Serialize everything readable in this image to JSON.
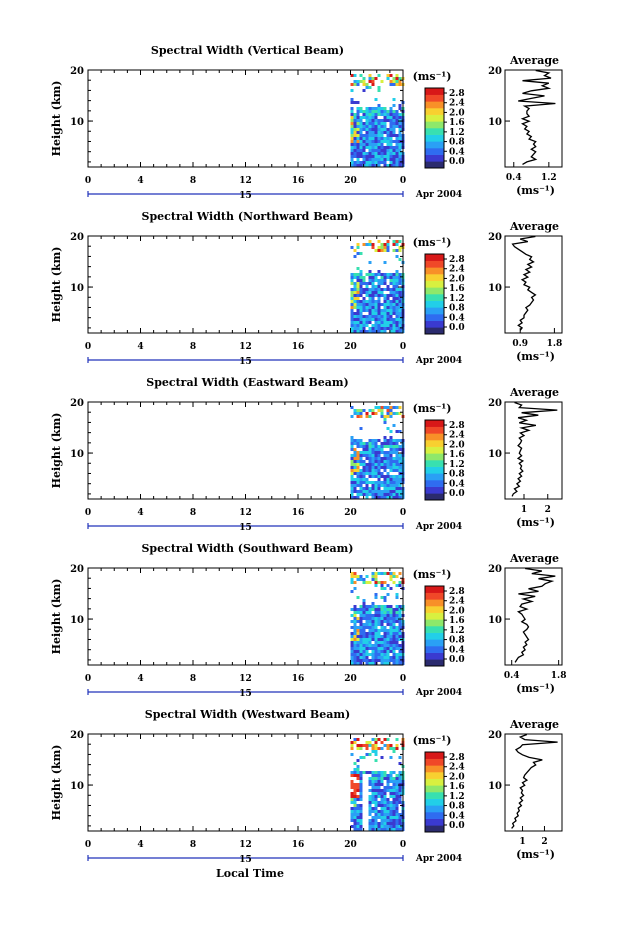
{
  "figure": {
    "date_label": "Apr 2004",
    "day_label": "15",
    "x_axis_label": "Local Time",
    "height_label": "Height (km)",
    "unit_label": "(ms⁻¹)",
    "avg_title": "Average",
    "avg_xlabel": "(ms⁻¹)"
  },
  "colorbar_ticks": [
    "2.8",
    "2.4",
    "2.0",
    "1.6",
    "1.2",
    "0.8",
    "0.4",
    "0.0"
  ],
  "colorbar_colors": [
    "#2b2b6e",
    "#3a3ad0",
    "#2f6cf0",
    "#2aa0f5",
    "#22cfe8",
    "#38e0b0",
    "#8ee86a",
    "#d8f040",
    "#f8d030",
    "#f89028",
    "#f04828",
    "#d81818"
  ],
  "chart_data": [
    {
      "type": "heatmap",
      "title": "Spectral Width (Vertical Beam)",
      "xlabel": "Local Time",
      "ylabel": "Height (km)",
      "x_ticks": [
        "0",
        "4",
        "8",
        "12",
        "16",
        "20",
        "0"
      ],
      "xlim": [
        0,
        24
      ],
      "y_ticks": [
        "20",
        "10"
      ],
      "ylim": [
        1,
        20
      ],
      "colorbar": {
        "label": "(ms⁻¹)",
        "range": [
          0,
          3.0
        ]
      },
      "data_start_hour": 20,
      "profile": {
        "title": "Average",
        "x_ticks": [
          "0.4",
          "1.2"
        ],
        "xlim": [
          0.2,
          1.5
        ],
        "y_ticks": [
          "20",
          "10"
        ],
        "values": [
          0.6,
          0.7,
          0.9,
          0.8,
          0.85,
          0.9,
          0.8,
          0.9,
          0.85,
          0.9,
          0.75,
          0.8,
          0.7,
          0.75,
          0.65,
          0.7,
          0.6,
          0.75,
          0.6,
          0.75,
          0.7,
          0.7,
          0.75,
          0.65,
          1.35,
          0.5,
          0.8,
          1.1,
          0.6,
          0.8,
          1.2,
          1.05,
          1.2,
          0.6,
          1.25,
          1.1,
          1.2,
          0.9
        ]
      }
    },
    {
      "type": "heatmap",
      "title": "Spectral Width (Northward Beam)",
      "xlabel": "Local Time",
      "ylabel": "Height (km)",
      "x_ticks": [
        "0",
        "4",
        "8",
        "12",
        "16",
        "20",
        "0"
      ],
      "xlim": [
        0,
        24
      ],
      "y_ticks": [
        "20",
        "10"
      ],
      "ylim": [
        1,
        20
      ],
      "colorbar": {
        "label": "(ms⁻¹)",
        "range": [
          0,
          3.0
        ]
      },
      "data_start_hour": 20,
      "profile": {
        "title": "Average",
        "x_ticks": [
          "0.9",
          "1.8"
        ],
        "xlim": [
          0.5,
          2.0
        ],
        "y_ticks": [
          "20",
          "10"
        ],
        "values": [
          0.9,
          0.95,
          0.85,
          0.95,
          0.9,
          1.0,
          1.0,
          1.05,
          1.1,
          1.05,
          1.15,
          1.2,
          1.25,
          1.2,
          1.3,
          1.2,
          1.1,
          1.15,
          1.0,
          1.05,
          0.95,
          1.1,
          1.0,
          1.15,
          1.05,
          1.2,
          1.1,
          1.25,
          1.15,
          1.2,
          1.05,
          0.95,
          0.85,
          0.75,
          0.7,
          1.1,
          0.9,
          1.3
        ]
      }
    },
    {
      "type": "heatmap",
      "title": "Spectral Width (Eastward Beam)",
      "xlabel": "Local Time",
      "ylabel": "Height (km)",
      "x_ticks": [
        "0",
        "4",
        "8",
        "12",
        "16",
        "20",
        "0"
      ],
      "xlim": [
        0,
        24
      ],
      "y_ticks": [
        "20",
        "10"
      ],
      "ylim": [
        1,
        20
      ],
      "colorbar": {
        "label": "(ms⁻¹)",
        "range": [
          0,
          3.0
        ]
      },
      "data_start_hour": 20,
      "profile": {
        "title": "Average",
        "x_ticks": [
          "1",
          "2"
        ],
        "xlim": [
          0.2,
          2.6
        ],
        "y_ticks": [
          "20",
          "10"
        ],
        "values": [
          0.5,
          0.55,
          0.7,
          0.6,
          0.8,
          0.7,
          0.85,
          0.75,
          0.9,
          0.8,
          0.95,
          0.85,
          0.9,
          0.8,
          0.95,
          0.75,
          0.9,
          0.8,
          0.85,
          0.9,
          0.75,
          0.85,
          0.9,
          0.8,
          1.0,
          0.85,
          1.2,
          0.9,
          1.5,
          0.8,
          1.1,
          0.75,
          1.6,
          0.9,
          2.4,
          0.8,
          0.9,
          0.6
        ]
      }
    },
    {
      "type": "heatmap",
      "title": "Spectral Width (Southward Beam)",
      "xlabel": "Local Time",
      "ylabel": "Height (km)",
      "x_ticks": [
        "0",
        "4",
        "8",
        "12",
        "16",
        "20",
        "0"
      ],
      "xlim": [
        0,
        24
      ],
      "y_ticks": [
        "20",
        "10"
      ],
      "ylim": [
        1,
        20
      ],
      "colorbar": {
        "label": "(ms⁻¹)",
        "range": [
          0,
          3.0
        ]
      },
      "data_start_hour": 20,
      "profile": {
        "title": "Average",
        "x_ticks": [
          "0.4",
          "1.8"
        ],
        "xlim": [
          0.2,
          1.9
        ],
        "y_ticks": [
          "20",
          "10"
        ],
        "values": [
          0.5,
          0.55,
          0.6,
          0.75,
          0.7,
          0.8,
          0.75,
          0.85,
          0.8,
          0.9,
          0.85,
          0.8,
          0.75,
          0.85,
          0.9,
          0.85,
          0.7,
          0.8,
          0.75,
          0.7,
          0.6,
          0.85,
          0.65,
          0.7,
          1.0,
          0.75,
          1.1,
          0.6,
          1.2,
          0.9,
          1.3,
          1.4,
          1.6,
          1.2,
          1.7,
          1.0,
          1.3,
          0.8
        ]
      }
    },
    {
      "type": "heatmap",
      "title": "Spectral Width (Westward Beam)",
      "xlabel": "Local Time",
      "ylabel": "Height (km)",
      "x_ticks": [
        "0",
        "4",
        "8",
        "12",
        "16",
        "20",
        "0"
      ],
      "xlim": [
        0,
        24
      ],
      "y_ticks": [
        "20",
        "10"
      ],
      "ylim": [
        1,
        20
      ],
      "colorbar": {
        "label": "(ms⁻¹)",
        "range": [
          0,
          3.0
        ]
      },
      "data_start_hour": 20,
      "profile": {
        "title": "Average",
        "x_ticks": [
          "1",
          "2"
        ],
        "xlim": [
          0.2,
          2.8
        ],
        "y_ticks": [
          "20",
          "10"
        ],
        "values": [
          0.5,
          0.6,
          0.55,
          0.7,
          0.65,
          0.8,
          0.75,
          0.85,
          0.8,
          0.95,
          0.85,
          1.0,
          0.9,
          1.05,
          0.95,
          1.0,
          0.9,
          1.1,
          1.0,
          1.2,
          1.05,
          1.1,
          1.2,
          1.3,
          1.4,
          1.6,
          1.5,
          1.9,
          1.3,
          1.0,
          0.8,
          0.7,
          0.9,
          1.0,
          2.6,
          1.1,
          0.9,
          1.2
        ]
      }
    }
  ]
}
